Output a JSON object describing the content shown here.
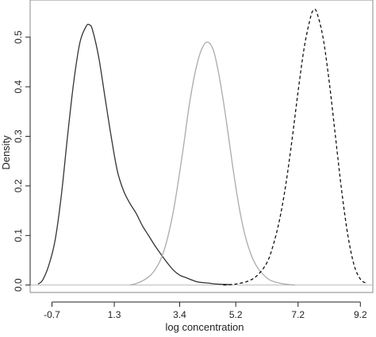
{
  "chart_data": {
    "type": "line",
    "xlabel": "log concentration",
    "ylabel": "Density",
    "xlim": [
      -1.4,
      9.6
    ],
    "ylim": [
      -0.015,
      0.575
    ],
    "x_ticks": [
      -0.7,
      1.3,
      3.4,
      5.2,
      7.2,
      9.2
    ],
    "x_tick_labels": [
      "-0.7",
      "1.3",
      "3.4",
      "5.2",
      "7.2",
      "9.2"
    ],
    "y_ticks": [
      0.0,
      0.1,
      0.2,
      0.3,
      0.4,
      0.5
    ],
    "y_tick_labels": [
      "0.0",
      "0.1",
      "0.2",
      "0.3",
      "0.4",
      "0.5"
    ],
    "grid": false,
    "series": [
      {
        "style": "solid",
        "color": "#333333",
        "x": [
          -1.15,
          -1.0,
          -0.8,
          -0.6,
          -0.4,
          -0.2,
          0.0,
          0.2,
          0.4,
          0.5,
          0.6,
          0.8,
          1.0,
          1.2,
          1.4,
          1.6,
          1.8,
          2.0,
          2.2,
          2.4,
          2.6,
          2.8,
          3.0,
          3.2,
          3.4,
          3.6,
          3.8,
          4.0,
          4.3,
          4.6,
          5.0
        ],
        "y": [
          0.002,
          0.01,
          0.04,
          0.09,
          0.18,
          0.3,
          0.41,
          0.49,
          0.522,
          0.525,
          0.515,
          0.46,
          0.38,
          0.3,
          0.23,
          0.19,
          0.165,
          0.145,
          0.12,
          0.1,
          0.08,
          0.062,
          0.045,
          0.03,
          0.02,
          0.015,
          0.01,
          0.006,
          0.004,
          0.002,
          0.001
        ]
      },
      {
        "style": "solid",
        "color": "#aaaaaa",
        "x": [
          1.8,
          2.0,
          2.3,
          2.6,
          2.9,
          3.2,
          3.5,
          3.7,
          3.9,
          4.1,
          4.3,
          4.5,
          4.7,
          4.9,
          5.1,
          5.3,
          5.5,
          5.7,
          5.9,
          6.1,
          6.3,
          6.6,
          6.9,
          7.1
        ],
        "y": [
          0.0,
          0.003,
          0.012,
          0.03,
          0.07,
          0.15,
          0.27,
          0.36,
          0.43,
          0.475,
          0.49,
          0.47,
          0.41,
          0.33,
          0.24,
          0.16,
          0.1,
          0.06,
          0.035,
          0.02,
          0.01,
          0.004,
          0.001,
          0.0
        ]
      },
      {
        "style": "dashed",
        "color": "#111111",
        "x": [
          4.8,
          5.2,
          5.6,
          5.9,
          6.2,
          6.4,
          6.6,
          6.8,
          7.0,
          7.2,
          7.4,
          7.6,
          7.7,
          7.8,
          8.0,
          8.2,
          8.4,
          8.6,
          8.8,
          9.0,
          9.2,
          9.4
        ],
        "y": [
          0.0,
          0.002,
          0.008,
          0.02,
          0.045,
          0.08,
          0.13,
          0.2,
          0.29,
          0.39,
          0.48,
          0.54,
          0.555,
          0.55,
          0.5,
          0.41,
          0.3,
          0.19,
          0.1,
          0.04,
          0.012,
          0.003
        ]
      }
    ]
  }
}
